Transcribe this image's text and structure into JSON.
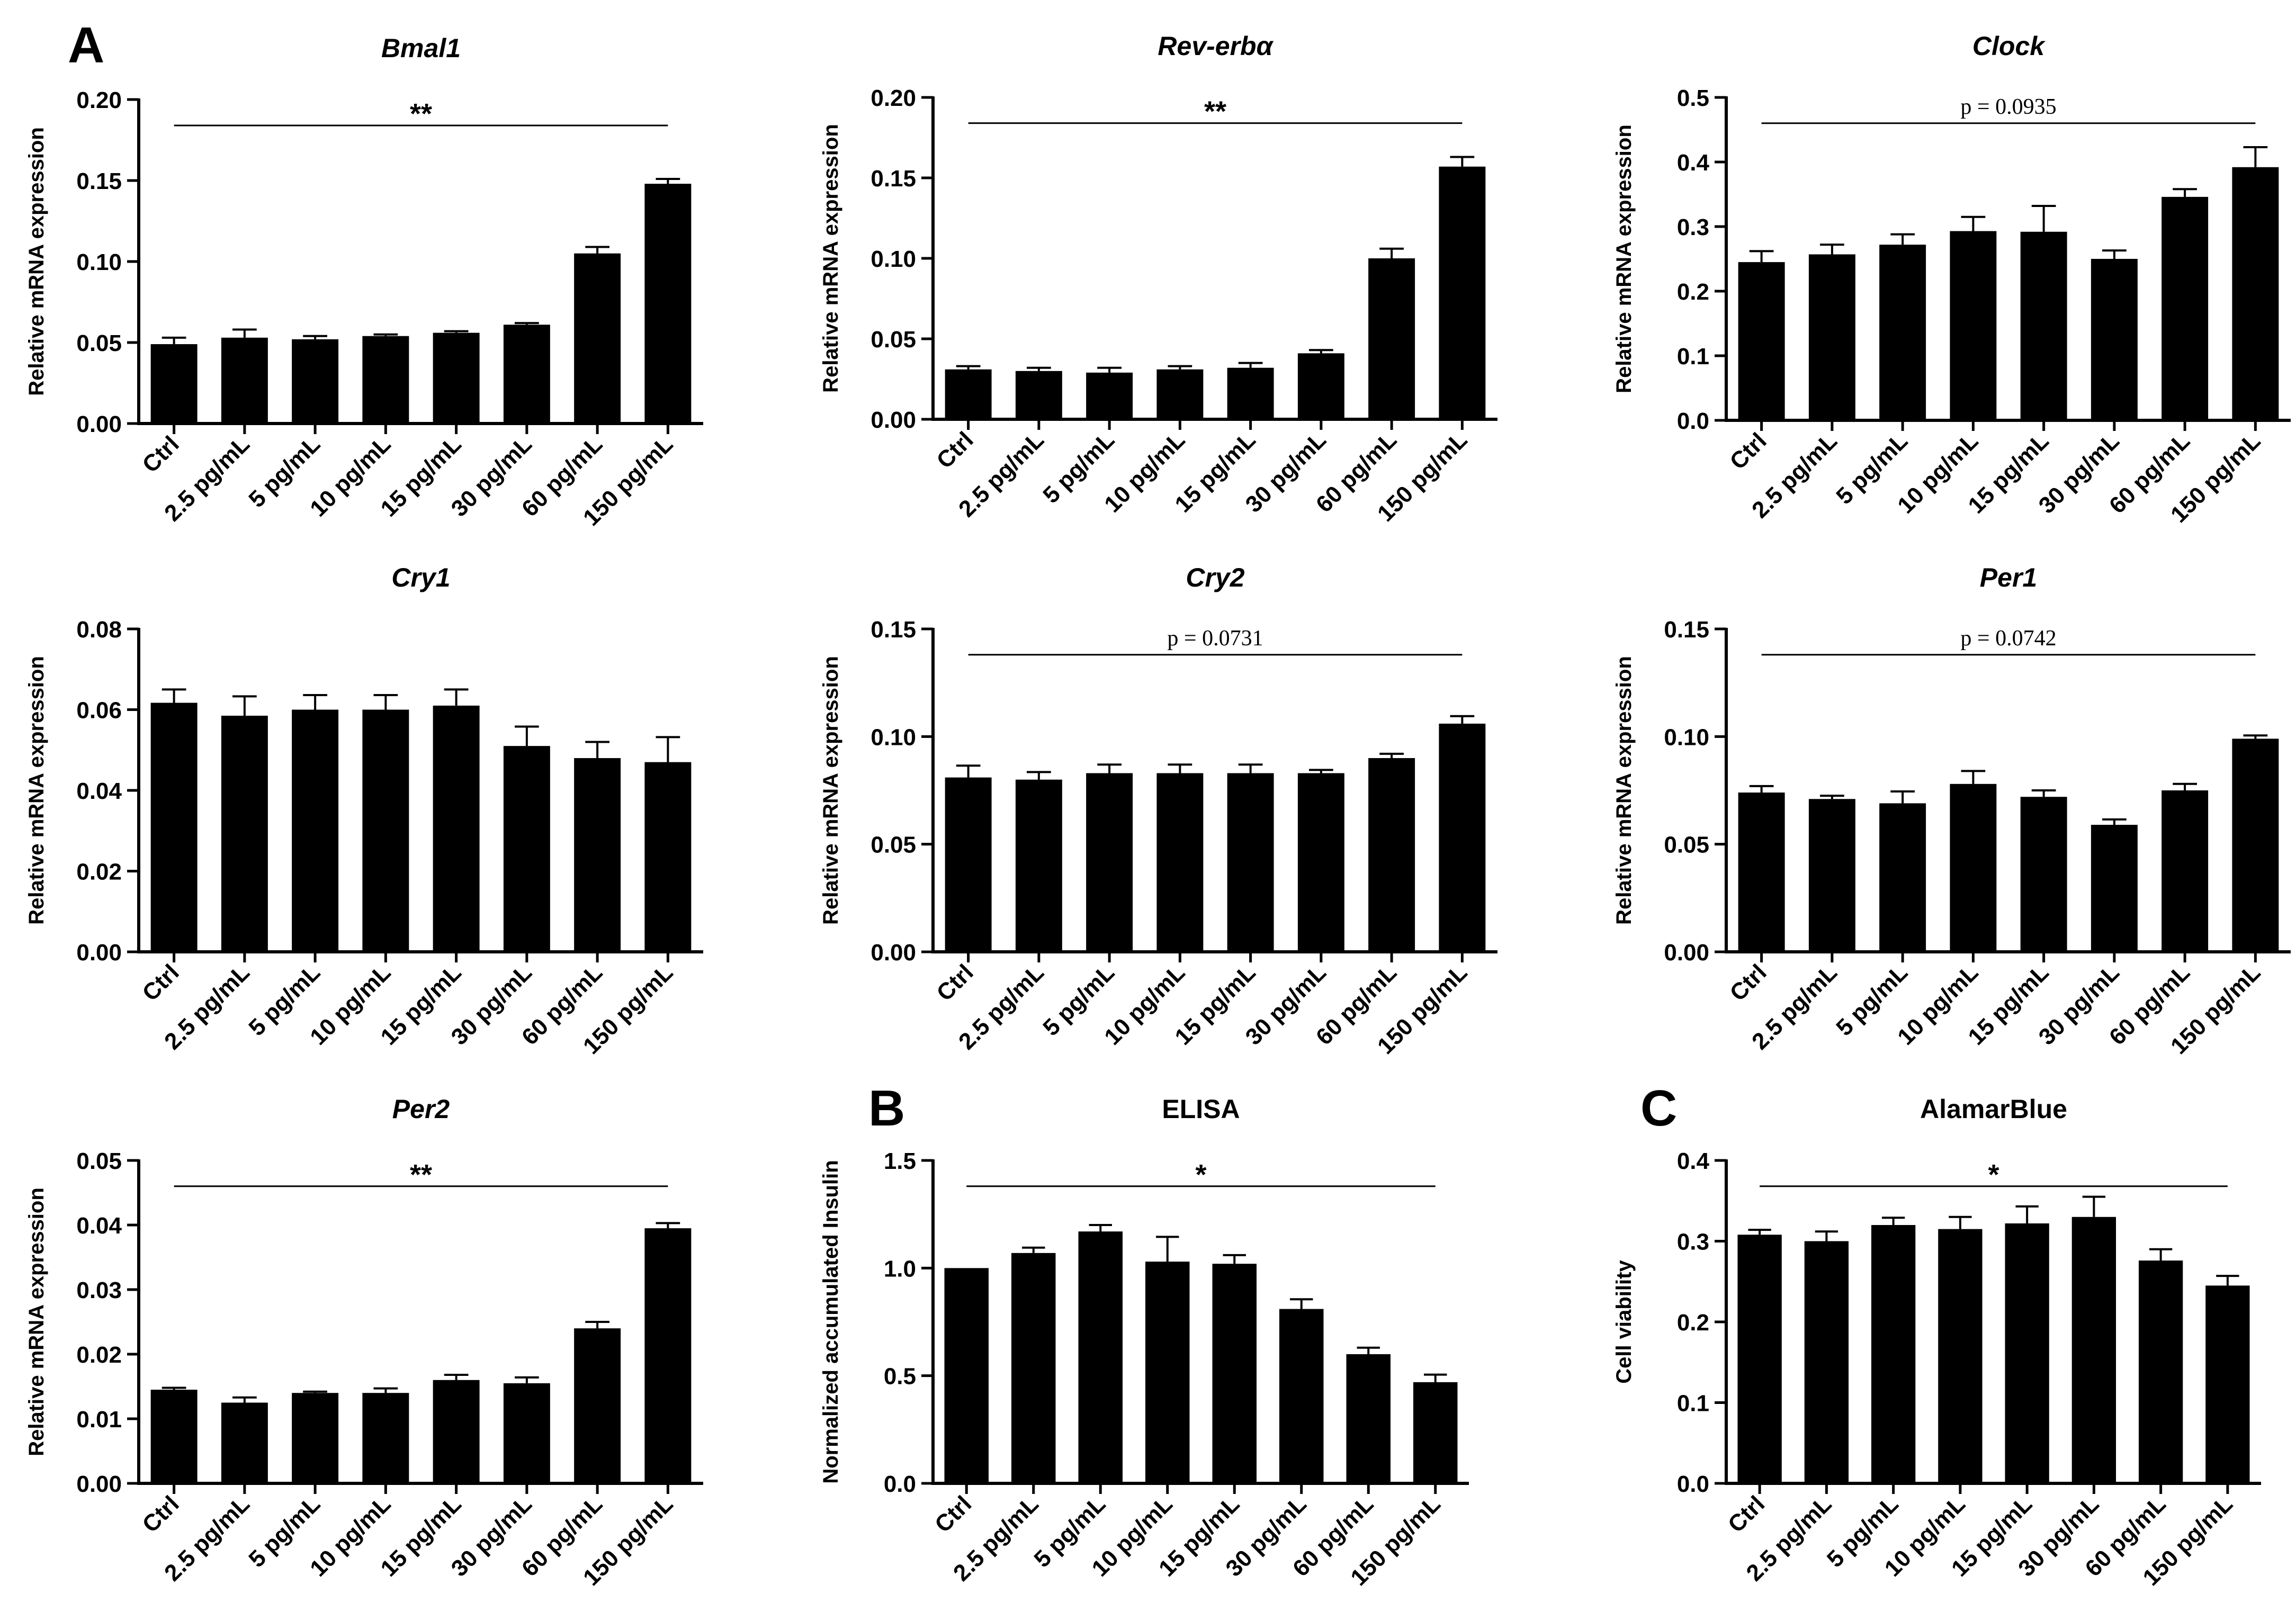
{
  "panel_labels": {
    "a": "A",
    "b": "B",
    "c": "C"
  },
  "chart_data": [
    {
      "type": "bar",
      "title": "Bmal1",
      "title_italic": true,
      "ylabel": "Relative mRNA expression",
      "xlabel": "",
      "categories": [
        "Ctrl",
        "2.5 pg/mL",
        "5 pg/mL",
        "10 pg/mL",
        "15 pg/mL",
        "30 pg/mL",
        "60 pg/mL",
        "150 pg/mL"
      ],
      "values": [
        0.049,
        0.053,
        0.052,
        0.054,
        0.056,
        0.061,
        0.105,
        0.148
      ],
      "errors": [
        0.004,
        0.005,
        0.002,
        0.001,
        0.001,
        0.001,
        0.004,
        0.003
      ],
      "ylim": [
        0,
        0.2
      ],
      "yticks": [
        "0.00",
        "0.05",
        "0.10",
        "0.15",
        "0.20"
      ],
      "significance": "**"
    },
    {
      "type": "bar",
      "title": "Rev-erbα",
      "title_italic": true,
      "ylabel": "Relative mRNA expression",
      "xlabel": "",
      "categories": [
        "Ctrl",
        "2.5 pg/mL",
        "5 pg/mL",
        "10 pg/mL",
        "15 pg/mL",
        "30 pg/mL",
        "60 pg/mL",
        "150 pg/mL"
      ],
      "values": [
        0.031,
        0.03,
        0.029,
        0.031,
        0.032,
        0.041,
        0.1,
        0.157
      ],
      "errors": [
        0.002,
        0.002,
        0.003,
        0.002,
        0.003,
        0.002,
        0.006,
        0.006
      ],
      "ylim": [
        0,
        0.2
      ],
      "yticks": [
        "0.00",
        "0.05",
        "0.10",
        "0.15",
        "0.20"
      ],
      "significance": "**"
    },
    {
      "type": "bar",
      "title": "Clock",
      "title_italic": true,
      "ylabel": "Relative mRNA expression",
      "xlabel": "",
      "categories": [
        "Ctrl",
        "2.5 pg/mL",
        "5 pg/mL",
        "10 pg/mL",
        "15 pg/mL",
        "30 pg/mL",
        "60 pg/mL",
        "150 pg/mL"
      ],
      "values": [
        0.245,
        0.257,
        0.272,
        0.293,
        0.292,
        0.25,
        0.346,
        0.392
      ],
      "errors": [
        0.017,
        0.015,
        0.016,
        0.022,
        0.04,
        0.013,
        0.012,
        0.031
      ],
      "ylim": [
        0,
        0.5
      ],
      "yticks": [
        "0.0",
        "0.1",
        "0.2",
        "0.3",
        "0.4",
        "0.5"
      ],
      "significance": "p = 0.0935"
    },
    {
      "type": "bar",
      "title": "Cry1",
      "title_italic": true,
      "ylabel": "Relative mRNA expression",
      "xlabel": "",
      "categories": [
        "Ctrl",
        "2.5 pg/mL",
        "5 pg/mL",
        "10 pg/mL",
        "15 pg/mL",
        "30 pg/mL",
        "60 pg/mL",
        "150 pg/mL"
      ],
      "values": [
        0.0617,
        0.0585,
        0.06,
        0.06,
        0.061,
        0.051,
        0.048,
        0.047
      ],
      "errors": [
        0.0033,
        0.0048,
        0.0036,
        0.0036,
        0.004,
        0.0048,
        0.004,
        0.0062
      ],
      "ylim": [
        0,
        0.08
      ],
      "yticks": [
        "0.00",
        "0.02",
        "0.04",
        "0.06",
        "0.08"
      ],
      "significance": ""
    },
    {
      "type": "bar",
      "title": "Cry2",
      "title_italic": true,
      "ylabel": "Relative mRNA expression",
      "xlabel": "",
      "categories": [
        "Ctrl",
        "2.5 pg/mL",
        "5 pg/mL",
        "10 pg/mL",
        "15 pg/mL",
        "30 pg/mL",
        "60 pg/mL",
        "150 pg/mL"
      ],
      "values": [
        0.081,
        0.08,
        0.083,
        0.083,
        0.083,
        0.083,
        0.09,
        0.106
      ],
      "errors": [
        0.0055,
        0.0035,
        0.004,
        0.004,
        0.004,
        0.0015,
        0.002,
        0.0035
      ],
      "ylim": [
        0,
        0.15
      ],
      "yticks": [
        "0.00",
        "0.05",
        "0.10",
        "0.15"
      ],
      "significance": "p = 0.0731"
    },
    {
      "type": "bar",
      "title": "Per1",
      "title_italic": true,
      "ylabel": "Relative mRNA expression",
      "xlabel": "",
      "categories": [
        "Ctrl",
        "2.5 pg/mL",
        "5 pg/mL",
        "10 pg/mL",
        "15 pg/mL",
        "30 pg/mL",
        "60 pg/mL",
        "150 pg/mL"
      ],
      "values": [
        0.074,
        0.071,
        0.069,
        0.078,
        0.072,
        0.059,
        0.075,
        0.099
      ],
      "errors": [
        0.003,
        0.0015,
        0.0055,
        0.006,
        0.003,
        0.0025,
        0.003,
        0.0015
      ],
      "ylim": [
        0,
        0.15
      ],
      "yticks": [
        "0.00",
        "0.05",
        "0.10",
        "0.15"
      ],
      "significance": "p = 0.0742"
    },
    {
      "type": "bar",
      "title": "Per2",
      "title_italic": true,
      "ylabel": "Relative mRNA expression",
      "xlabel": "",
      "categories": [
        "Ctrl",
        "2.5 pg/mL",
        "5 pg/mL",
        "10 pg/mL",
        "15 pg/mL",
        "30 pg/mL",
        "60 pg/mL",
        "150 pg/mL"
      ],
      "values": [
        0.0145,
        0.0125,
        0.014,
        0.014,
        0.016,
        0.0155,
        0.024,
        0.0395
      ],
      "errors": [
        0.0003,
        0.0008,
        0.0002,
        0.0007,
        0.0008,
        0.0009,
        0.001,
        0.0008
      ],
      "ylim": [
        0,
        0.05
      ],
      "yticks": [
        "0.00",
        "0.01",
        "0.02",
        "0.03",
        "0.04",
        "0.05"
      ],
      "significance": "**"
    },
    {
      "type": "bar",
      "title": "ELISA",
      "title_italic": false,
      "ylabel": "Normalized accumulated Insulin",
      "xlabel": "",
      "categories": [
        "Ctrl",
        "2.5 pg/mL",
        "5 pg/mL",
        "10 pg/mL",
        "15 pg/mL",
        "30 pg/mL",
        "60 pg/mL",
        "150 pg/mL"
      ],
      "values": [
        1.0,
        1.07,
        1.17,
        1.03,
        1.02,
        0.81,
        0.6,
        0.47
      ],
      "errors": [
        0.0,
        0.025,
        0.03,
        0.115,
        0.04,
        0.045,
        0.03,
        0.035
      ],
      "ylim": [
        0,
        1.5
      ],
      "yticks": [
        "0.0",
        "0.5",
        "1.0",
        "1.5"
      ],
      "significance": "*"
    },
    {
      "type": "bar",
      "title": "AlamarBlue",
      "title_italic": false,
      "ylabel": "Cell viability",
      "xlabel": "",
      "categories": [
        "Ctrl",
        "2.5 pg/mL",
        "5 pg/mL",
        "10 pg/mL",
        "15 pg/mL",
        "30 pg/mL",
        "60 pg/mL",
        "150 pg/mL"
      ],
      "values": [
        0.308,
        0.3,
        0.32,
        0.315,
        0.322,
        0.33,
        0.276,
        0.245
      ],
      "errors": [
        0.006,
        0.012,
        0.009,
        0.015,
        0.021,
        0.025,
        0.014,
        0.012
      ],
      "ylim": [
        0,
        0.4
      ],
      "yticks": [
        "0.0",
        "0.1",
        "0.2",
        "0.3",
        "0.4"
      ],
      "significance": "*"
    }
  ]
}
